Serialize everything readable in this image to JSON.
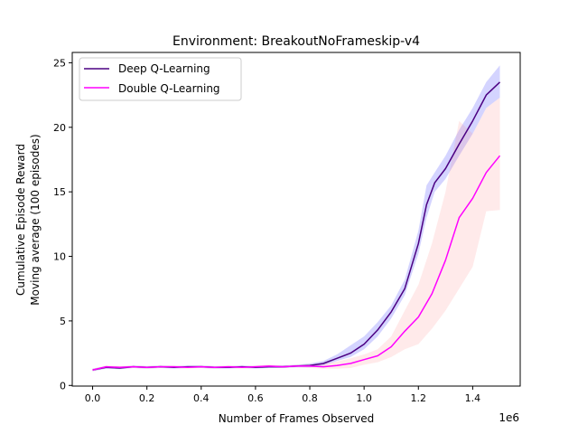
{
  "chart_data": {
    "type": "line",
    "title": "Environment: BreakoutNoFrameskip-v4",
    "xlabel": "Number of Frames Observed",
    "ylabel_line1": "Cumulative Episode Reward",
    "ylabel_line2": "Moving average (100 episodes)",
    "x_offset_label": "1e6",
    "xlim": [
      -0.075,
      1.575
    ],
    "ylim": [
      -0.05,
      25.8
    ],
    "x_ticks": [
      0.0,
      0.2,
      0.4,
      0.6,
      0.8,
      1.0,
      1.2,
      1.4
    ],
    "x_tick_labels": [
      "0.0",
      "0.2",
      "0.4",
      "0.6",
      "0.8",
      "1.0",
      "1.2",
      "1.4"
    ],
    "y_ticks": [
      0,
      5,
      10,
      15,
      20,
      25
    ],
    "y_tick_labels": [
      "0",
      "5",
      "10",
      "15",
      "20",
      "25"
    ],
    "legend_position": "top-left",
    "series": [
      {
        "name": "Deep Q-Learning",
        "color": "#4b0082",
        "band_color": "#0000ff",
        "x": [
          0.0,
          0.05,
          0.1,
          0.15,
          0.2,
          0.25,
          0.3,
          0.35,
          0.4,
          0.45,
          0.5,
          0.55,
          0.6,
          0.65,
          0.7,
          0.75,
          0.8,
          0.85,
          0.9,
          0.95,
          1.0,
          1.05,
          1.1,
          1.15,
          1.2,
          1.23,
          1.26,
          1.3,
          1.35,
          1.4,
          1.45,
          1.5
        ],
        "mean": [
          1.2,
          1.4,
          1.35,
          1.45,
          1.4,
          1.45,
          1.4,
          1.45,
          1.45,
          1.4,
          1.4,
          1.45,
          1.4,
          1.45,
          1.45,
          1.5,
          1.55,
          1.7,
          2.1,
          2.5,
          3.2,
          4.3,
          5.7,
          7.5,
          11.0,
          14.0,
          15.7,
          16.8,
          18.7,
          20.5,
          22.5,
          23.5
        ],
        "lower": [
          1.1,
          1.3,
          1.25,
          1.35,
          1.3,
          1.35,
          1.3,
          1.35,
          1.35,
          1.3,
          1.3,
          1.35,
          1.3,
          1.35,
          1.35,
          1.4,
          1.4,
          1.55,
          1.9,
          2.2,
          2.8,
          3.8,
          5.2,
          7.0,
          10.2,
          13.0,
          15.0,
          16.0,
          17.8,
          19.5,
          21.5,
          22.3
        ],
        "upper": [
          1.3,
          1.5,
          1.45,
          1.55,
          1.5,
          1.55,
          1.5,
          1.55,
          1.55,
          1.5,
          1.5,
          1.55,
          1.5,
          1.55,
          1.55,
          1.6,
          1.7,
          1.9,
          2.4,
          3.1,
          3.8,
          4.9,
          6.2,
          8.2,
          12.0,
          15.5,
          16.5,
          17.8,
          19.8,
          21.5,
          23.5,
          24.8
        ]
      },
      {
        "name": "Double Q-Learning",
        "color": "#ff00ff",
        "band_color": "#ff8080",
        "x": [
          0.0,
          0.05,
          0.1,
          0.15,
          0.2,
          0.25,
          0.3,
          0.35,
          0.4,
          0.45,
          0.5,
          0.55,
          0.6,
          0.65,
          0.7,
          0.75,
          0.8,
          0.85,
          0.9,
          0.95,
          1.0,
          1.05,
          1.1,
          1.15,
          1.2,
          1.25,
          1.3,
          1.35,
          1.4,
          1.45,
          1.5
        ],
        "mean": [
          1.2,
          1.45,
          1.4,
          1.45,
          1.4,
          1.45,
          1.45,
          1.4,
          1.45,
          1.4,
          1.45,
          1.4,
          1.45,
          1.5,
          1.45,
          1.5,
          1.5,
          1.45,
          1.55,
          1.7,
          2.0,
          2.3,
          3.0,
          4.2,
          5.3,
          7.1,
          9.7,
          13.0,
          14.5,
          16.5,
          17.8
        ],
        "lower": [
          1.1,
          1.35,
          1.3,
          1.35,
          1.3,
          1.35,
          1.35,
          1.3,
          1.35,
          1.3,
          1.35,
          1.3,
          1.35,
          1.4,
          1.35,
          1.4,
          1.35,
          1.3,
          1.3,
          1.35,
          1.6,
          1.8,
          2.2,
          2.8,
          3.2,
          4.4,
          5.8,
          7.5,
          9.2,
          13.5,
          13.6
        ],
        "upper": [
          1.3,
          1.55,
          1.5,
          1.55,
          1.5,
          1.55,
          1.55,
          1.5,
          1.55,
          1.5,
          1.55,
          1.5,
          1.55,
          1.6,
          1.55,
          1.6,
          1.65,
          1.7,
          1.85,
          2.1,
          2.4,
          2.8,
          3.8,
          5.8,
          7.8,
          11.0,
          15.0,
          20.5,
          19.5,
          21.5,
          22.3
        ]
      }
    ]
  }
}
